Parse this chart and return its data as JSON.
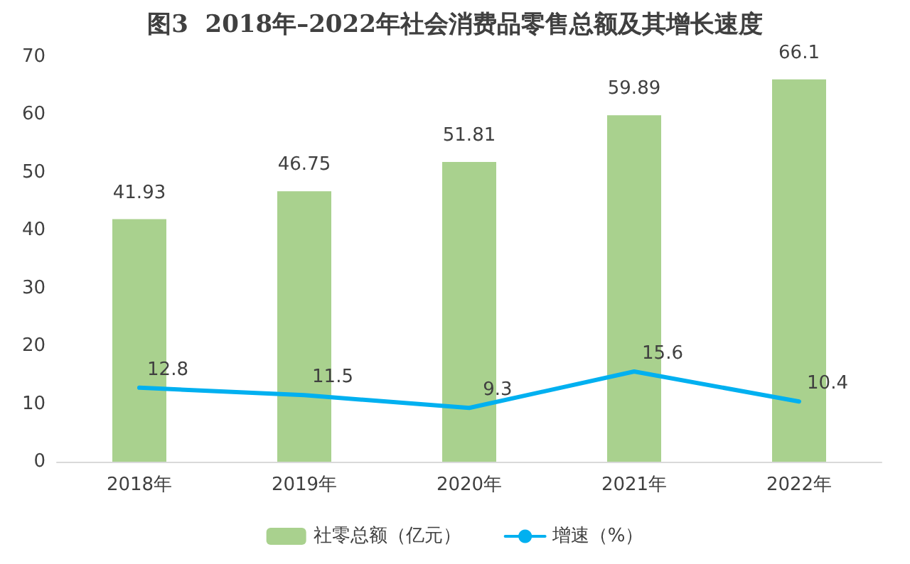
{
  "chart_data": {
    "type": "bar",
    "title": "图3  2018年–2022年社会消费品零售总额及其增长速度",
    "categories": [
      "2018年",
      "2019年",
      "2020年",
      "2021年",
      "2022年"
    ],
    "series": [
      {
        "name": "社零总额（亿元）",
        "color": "#a9d18e",
        "values": [
          41.93,
          46.75,
          51.81,
          59.89,
          66.1
        ]
      },
      {
        "name": "增速（%）",
        "type": "line",
        "color": "#00b0f0",
        "values": [
          12.8,
          11.5,
          9.3,
          15.6,
          10.4
        ],
        "marker": "none"
      }
    ],
    "ylim": [
      0,
      70
    ],
    "yticks": [
      0,
      10,
      20,
      30,
      40,
      50,
      60,
      70
    ],
    "grid": false,
    "legend": "bottom",
    "data_labels": true
  }
}
